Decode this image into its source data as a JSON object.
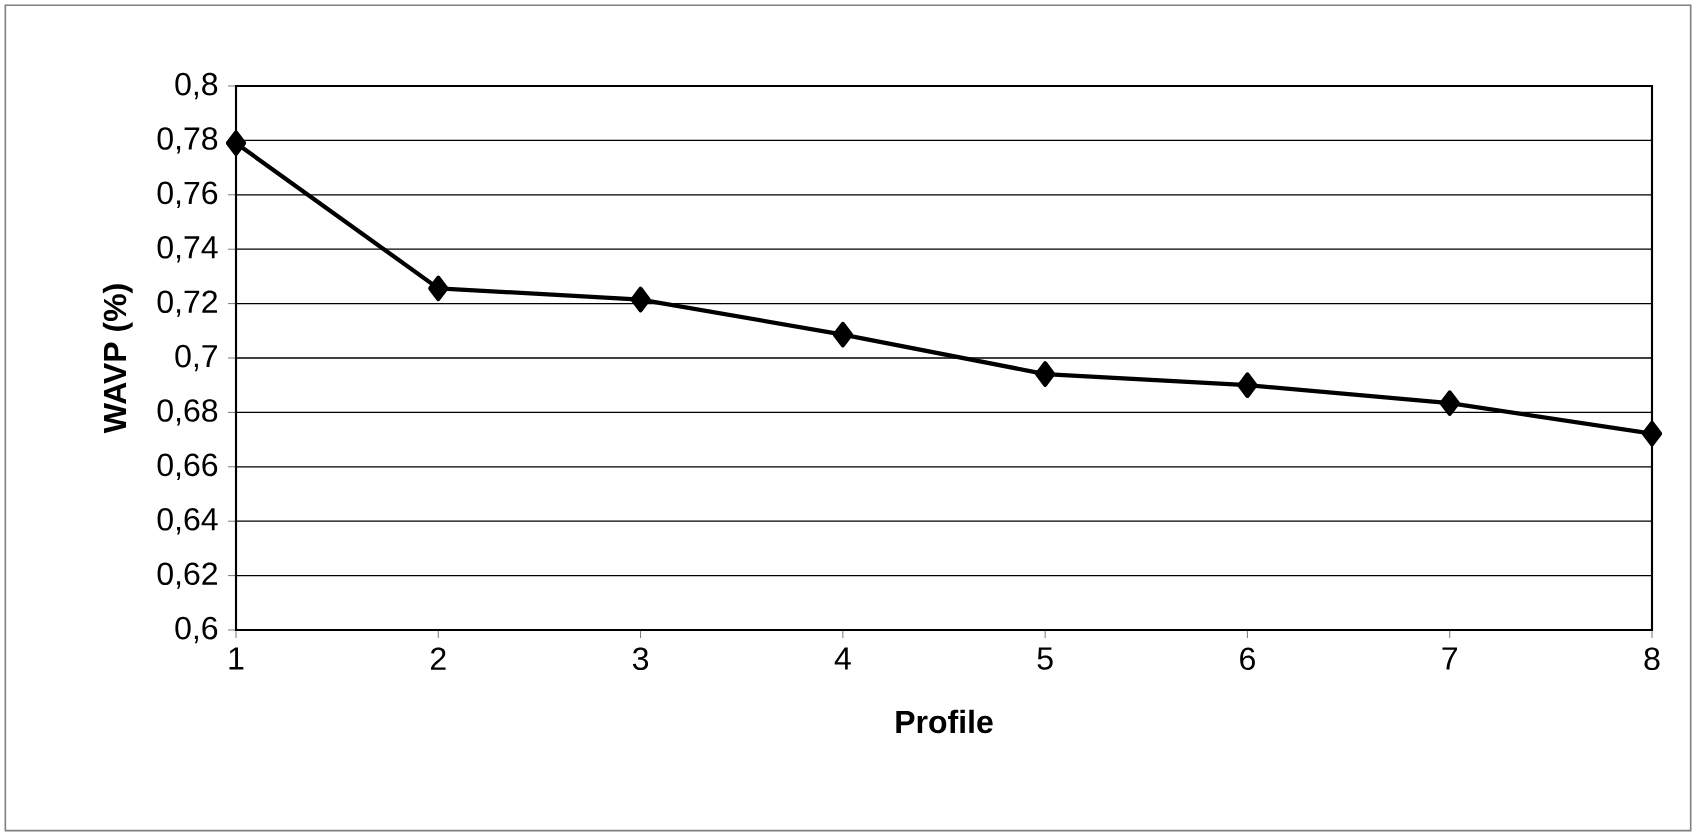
{
  "chart_data": {
    "type": "line",
    "xlabel": "Profile",
    "ylabel": "WAVP (%)",
    "x": [
      1,
      2,
      3,
      4,
      5,
      6,
      7,
      8
    ],
    "series": [
      {
        "color": "#000000",
        "values": [
          0.779,
          0.7256,
          0.7215,
          0.7086,
          0.6941,
          0.69,
          0.6834,
          0.6722
        ]
      }
    ],
    "xlim": [
      1,
      8
    ],
    "xticks": [
      1,
      2,
      3,
      4,
      5,
      6,
      7,
      8
    ],
    "ylim": [
      0.6,
      0.8
    ],
    "yticks": [
      {
        "value": 0.6,
        "label": "0,6"
      },
      {
        "value": 0.62,
        "label": "0,62"
      },
      {
        "value": 0.64,
        "label": "0,64"
      },
      {
        "value": 0.66,
        "label": "0,66"
      },
      {
        "value": 0.68,
        "label": "0,68"
      },
      {
        "value": 0.7,
        "label": "0,7"
      },
      {
        "value": 0.72,
        "label": "0,72"
      },
      {
        "value": 0.74,
        "label": "0,74"
      },
      {
        "value": 0.76,
        "label": "0,76"
      },
      {
        "value": 0.78,
        "label": "0,78"
      },
      {
        "value": 0.8,
        "label": "0,8"
      }
    ],
    "grid": "y",
    "marker": "diamond",
    "line_style": "solid"
  }
}
